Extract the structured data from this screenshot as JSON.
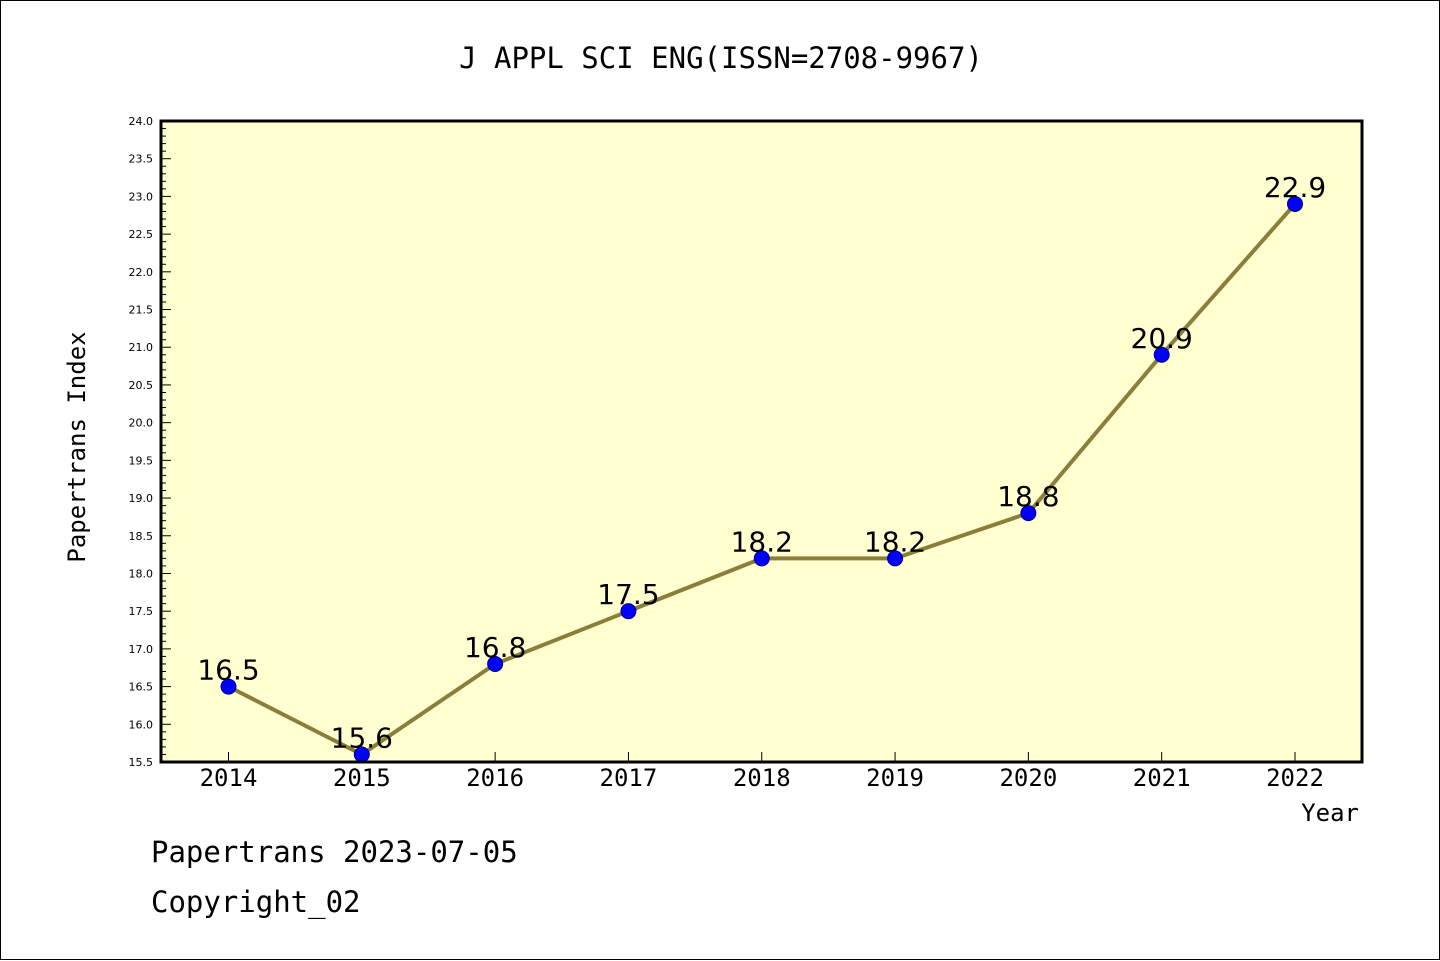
{
  "chart_data": {
    "type": "line",
    "title": "J APPL SCI ENG(ISSN=2708-9967)",
    "xlabel": "Year",
    "ylabel": "Papertrans Index",
    "categories": [
      "2014",
      "2015",
      "2016",
      "2017",
      "2018",
      "2019",
      "2020",
      "2021",
      "2022"
    ],
    "series": [
      {
        "values": [
          16.5,
          15.6,
          16.8,
          17.5,
          18.2,
          18.2,
          18.8,
          20.9,
          22.9
        ],
        "data_labels": [
          "16.5",
          "15.6",
          "16.8",
          "17.5",
          "18.2",
          "18.2",
          "18.8",
          "20.9",
          "22.9"
        ],
        "line_color": "#8b7d3a",
        "marker_color": "#0000ff"
      }
    ],
    "ylim": [
      15.5,
      24.0
    ],
    "ytick_values": [
      15.5,
      16.0,
      16.5,
      17.0,
      17.5,
      18.0,
      18.5,
      19.0,
      19.5,
      20.0,
      20.5,
      21.0,
      21.5,
      22.0,
      22.5,
      23.0,
      23.5,
      24.0
    ],
    "ytick_labels": [
      "15.5",
      "16.0",
      "16.5",
      "17.0",
      "17.5",
      "18.0",
      "18.5",
      "19.0",
      "19.5",
      "20.0",
      "20.5",
      "21.0",
      "21.5",
      "22.0",
      "22.5",
      "23.0",
      "23.5",
      "24.0"
    ],
    "grid": false,
    "plot_background": "#ffffd0"
  },
  "footer": {
    "line1": "Papertrans 2023-07-05",
    "line2": "Copyright_02"
  }
}
